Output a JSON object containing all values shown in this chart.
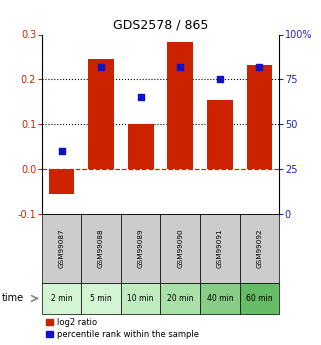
{
  "title": "GDS2578 / 865",
  "categories": [
    "GSM99087",
    "GSM99088",
    "GSM99089",
    "GSM99090",
    "GSM99091",
    "GSM99092"
  ],
  "time_labels": [
    "2 min",
    "5 min",
    "10 min",
    "20 min",
    "40 min",
    "60 min"
  ],
  "log2_ratio": [
    -0.055,
    0.245,
    0.1,
    0.283,
    0.155,
    0.232
  ],
  "percentile_rank_right": [
    35,
    82,
    65,
    82,
    75,
    82
  ],
  "ylim_left": [
    -0.1,
    0.3
  ],
  "yticks_left": [
    -0.1,
    0,
    0.1,
    0.2,
    0.3
  ],
  "ylim_right": [
    0,
    100
  ],
  "yticks_right": [
    0,
    25,
    50,
    75,
    100
  ],
  "bar_color": "#cc2200",
  "dot_color": "#1111cc",
  "zero_line_color": "#cc2200",
  "left_tick_color": "#cc2200",
  "right_tick_color": "#2222bb",
  "time_colors": [
    "#d4f5d4",
    "#d4f5d4",
    "#c0ecc0",
    "#a8e0a8",
    "#88cc88",
    "#66bb66"
  ],
  "gsm_color": "#cccccc",
  "legend_labels": [
    "log2 ratio",
    "percentile rank within the sample"
  ]
}
